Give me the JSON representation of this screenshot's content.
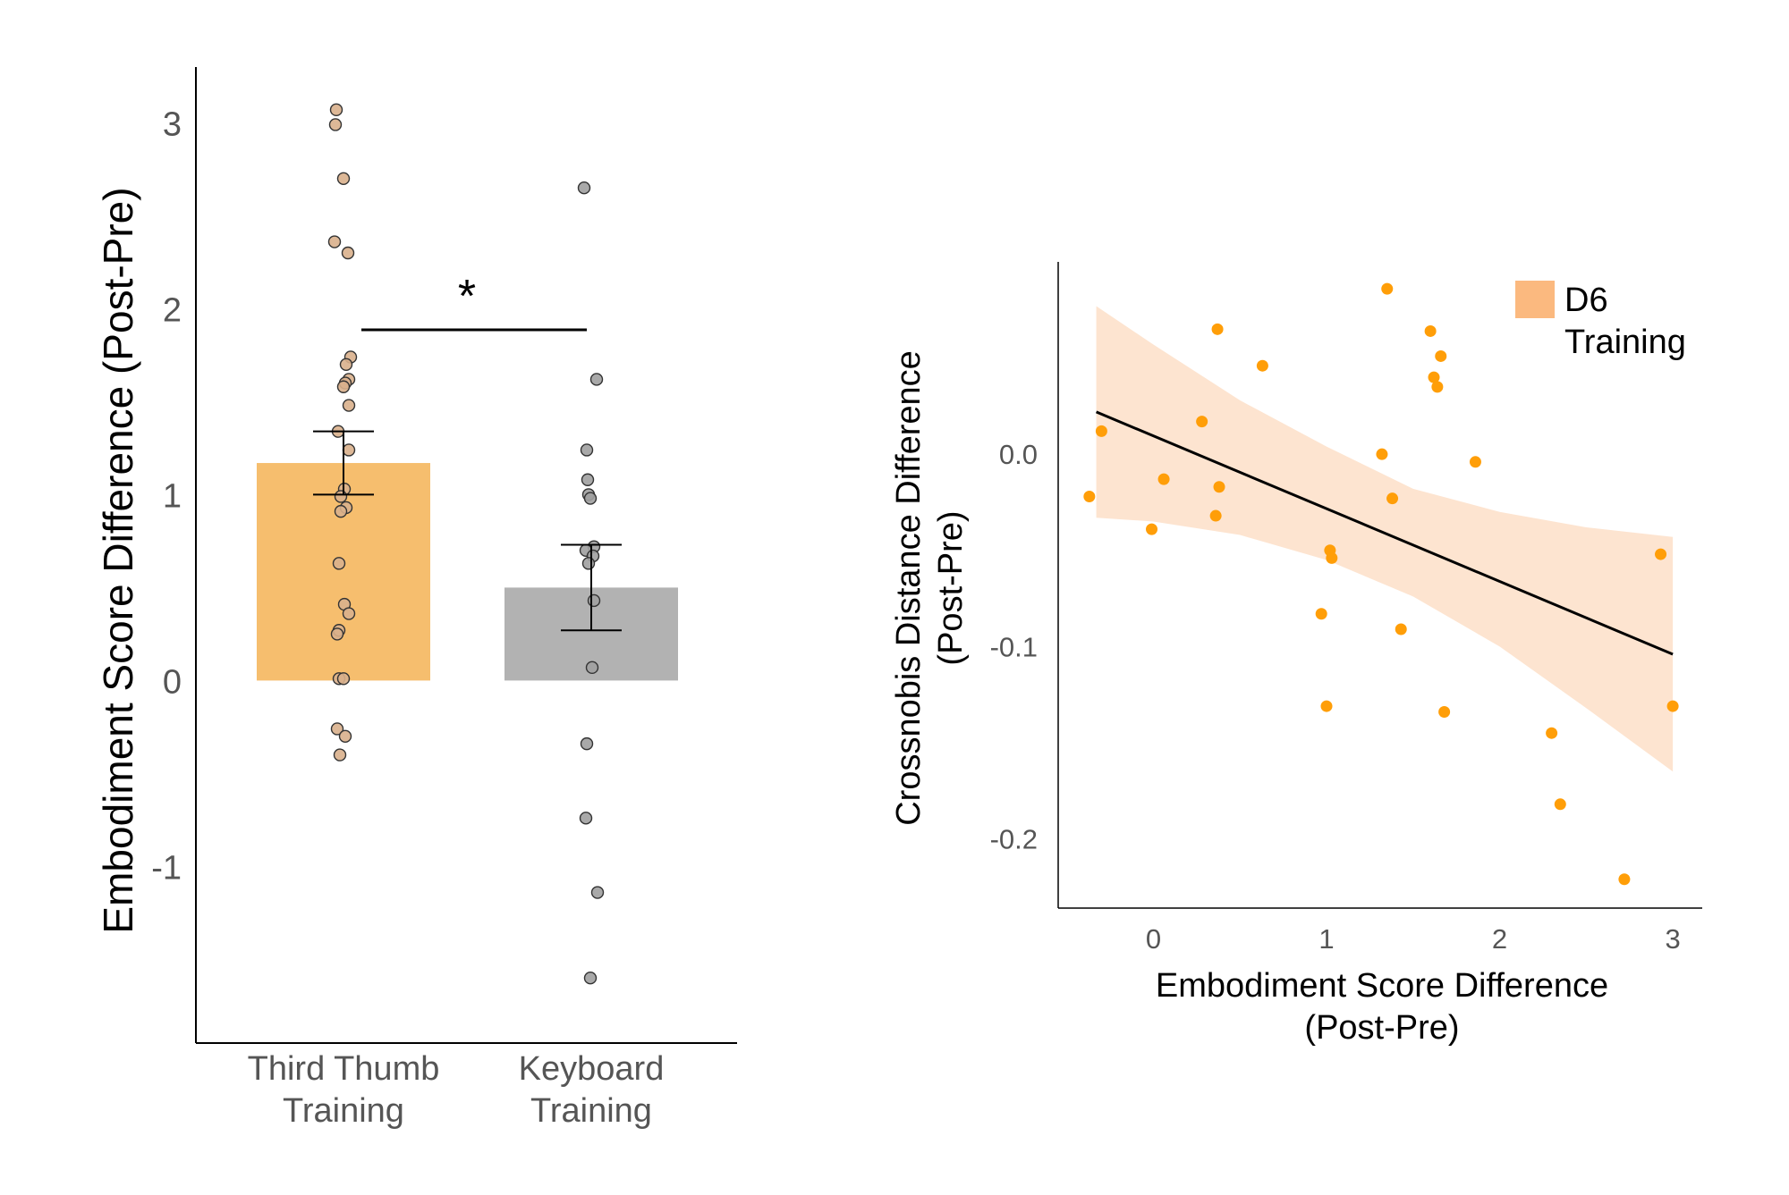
{
  "chart_data": [
    {
      "type": "bar",
      "ylabel": "Embodiment Score Difference (Post-Pre)",
      "ylim": [
        -1.95,
        3.3
      ],
      "yticks": [
        -1,
        0,
        1,
        2,
        3
      ],
      "ytick_labels": [
        "-1",
        "0",
        "1",
        "2",
        "3"
      ],
      "categories": [
        {
          "line1": "Third Thumb",
          "line2": "Training"
        },
        {
          "line1": "Keyboard",
          "line2": "Training"
        }
      ],
      "bar_colors": [
        "#F6BE6E",
        "#B2B2B2"
      ],
      "point_colors": [
        "#D9B08C",
        "#A0A0A0"
      ],
      "values": [
        1.17,
        0.5
      ],
      "error_low": [
        1.0,
        0.27
      ],
      "error_high": [
        1.34,
        0.73
      ],
      "points": [
        [
          3.07,
          2.99,
          2.7,
          2.36,
          2.3,
          1.74,
          1.7,
          1.62,
          1.6,
          1.58,
          1.48,
          1.34,
          1.24,
          1.03,
          0.99,
          0.93,
          0.91,
          0.63,
          0.41,
          0.36,
          0.27,
          0.25,
          0.01,
          0.01,
          -0.26,
          -0.3,
          -0.4
        ],
        [
          2.65,
          1.62,
          1.24,
          1.08,
          1.0,
          0.98,
          0.72,
          0.7,
          0.67,
          0.63,
          0.43,
          0.07,
          -0.34,
          -0.74,
          -1.14,
          -1.6
        ]
      ],
      "significance": "*"
    },
    {
      "type": "scatter",
      "xlabel_line1": "Embodiment Score Difference",
      "xlabel_line2": "(Post-Pre)",
      "ylabel_line1": "Crossnobis Distance Difference",
      "ylabel_line2": "(Post-Pre)",
      "xlim": [
        -0.55,
        3.17
      ],
      "ylim": [
        -0.236,
        0.1
      ],
      "xticks": [
        0,
        1,
        2,
        3
      ],
      "xtick_labels": [
        "0",
        "1",
        "2",
        "3"
      ],
      "yticks": [
        -0.2,
        -0.1,
        0.0
      ],
      "ytick_labels": [
        "-0.2",
        "-0.1",
        "0.0"
      ],
      "point_color": "#FF9E08",
      "band_color": "#FDE4D0",
      "legend_color": "#FBB97F",
      "legend_line1": "D6",
      "legend_line2": "Training",
      "legend_position": "top-right",
      "regression": {
        "x": [
          -0.33,
          3.0
        ],
        "y": [
          0.022,
          -0.104
        ]
      },
      "confidence_band": {
        "x": [
          -0.33,
          0.0,
          0.5,
          1.0,
          1.5,
          2.0,
          2.5,
          3.0
        ],
        "upper": [
          0.077,
          0.057,
          0.028,
          0.004,
          -0.018,
          -0.03,
          -0.038,
          -0.043
        ],
        "lower": [
          -0.033,
          -0.035,
          -0.042,
          -0.055,
          -0.074,
          -0.1,
          -0.132,
          -0.165
        ]
      },
      "points": [
        {
          "x": -0.37,
          "y": -0.022
        },
        {
          "x": -0.3,
          "y": 0.012
        },
        {
          "x": -0.01,
          "y": -0.039
        },
        {
          "x": 0.06,
          "y": -0.013
        },
        {
          "x": 0.28,
          "y": 0.017
        },
        {
          "x": 0.36,
          "y": -0.032
        },
        {
          "x": 0.37,
          "y": 0.065
        },
        {
          "x": 0.38,
          "y": -0.017
        },
        {
          "x": 0.63,
          "y": 0.046
        },
        {
          "x": 0.97,
          "y": -0.083
        },
        {
          "x": 1.0,
          "y": -0.131
        },
        {
          "x": 1.02,
          "y": -0.05
        },
        {
          "x": 1.03,
          "y": -0.054
        },
        {
          "x": 1.32,
          "y": 0.0
        },
        {
          "x": 1.35,
          "y": 0.086
        },
        {
          "x": 1.38,
          "y": -0.023
        },
        {
          "x": 1.43,
          "y": -0.091
        },
        {
          "x": 1.6,
          "y": 0.064
        },
        {
          "x": 1.62,
          "y": 0.04
        },
        {
          "x": 1.64,
          "y": 0.035
        },
        {
          "x": 1.66,
          "y": 0.051
        },
        {
          "x": 1.68,
          "y": -0.134
        },
        {
          "x": 1.86,
          "y": -0.004
        },
        {
          "x": 2.3,
          "y": -0.145
        },
        {
          "x": 2.35,
          "y": -0.182
        },
        {
          "x": 2.72,
          "y": -0.221
        },
        {
          "x": 2.93,
          "y": -0.052
        },
        {
          "x": 3.0,
          "y": -0.131
        }
      ]
    }
  ]
}
